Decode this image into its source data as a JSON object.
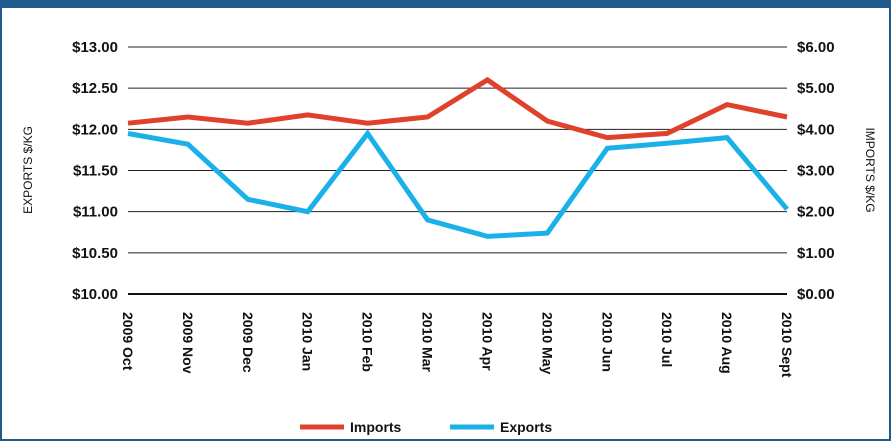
{
  "chart_data": {
    "type": "line",
    "categories": [
      "2009 Oct",
      "2009 Nov",
      "2009 Dec",
      "2010 Jan",
      "2010 Feb",
      "2010 Mar",
      "2010 Apr",
      "2010 May",
      "2010 Jun",
      "2010 Jul",
      "2010 Aug",
      "2010 Sept"
    ],
    "left_axis": {
      "label": "EXPORTS $/KG",
      "ticks": [
        "$10.00",
        "$10.50",
        "$11.00",
        "$11.50",
        "$12.00",
        "$12.50",
        "$13.00"
      ],
      "ylim": [
        10,
        13
      ]
    },
    "right_axis": {
      "label": "IMPORTS $/KG",
      "ticks": [
        "$0.00",
        "$1.00",
        "$2.00",
        "$3.00",
        "$4.00",
        "$5.00",
        "$6.00"
      ],
      "ylim": [
        0,
        6
      ]
    },
    "series": [
      {
        "name": "Imports",
        "axis": "right",
        "color": "#e0412b",
        "values": [
          4.15,
          4.3,
          4.15,
          4.35,
          4.15,
          4.3,
          5.2,
          4.2,
          3.8,
          3.9,
          4.6,
          4.3
        ]
      },
      {
        "name": "Exports",
        "axis": "left",
        "color": "#1ab0e8",
        "values": [
          11.95,
          11.82,
          11.15,
          11.0,
          11.95,
          10.9,
          10.7,
          10.74,
          11.77,
          11.83,
          11.9,
          11.03
        ]
      }
    ],
    "grid": true,
    "legend_position": "bottom-center"
  }
}
